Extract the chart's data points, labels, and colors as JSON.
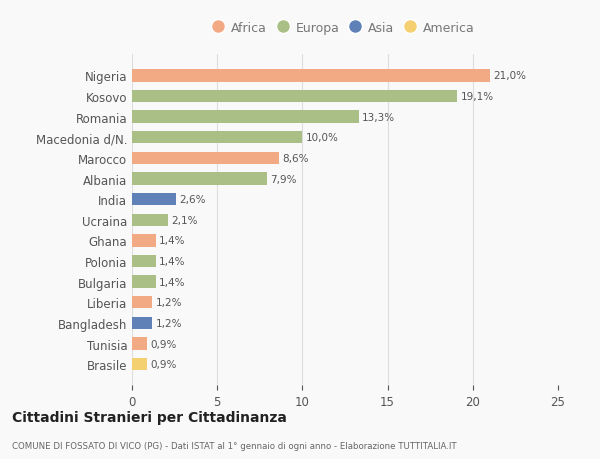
{
  "countries": [
    "Nigeria",
    "Kosovo",
    "Romania",
    "Macedonia d/N.",
    "Marocco",
    "Albania",
    "India",
    "Ucraina",
    "Ghana",
    "Polonia",
    "Bulgaria",
    "Liberia",
    "Bangladesh",
    "Tunisia",
    "Brasile"
  ],
  "values": [
    21.0,
    19.1,
    13.3,
    10.0,
    8.6,
    7.9,
    2.6,
    2.1,
    1.4,
    1.4,
    1.4,
    1.2,
    1.2,
    0.9,
    0.9
  ],
  "labels": [
    "21,0%",
    "19,1%",
    "13,3%",
    "10,0%",
    "8,6%",
    "7,9%",
    "2,6%",
    "2,1%",
    "1,4%",
    "1,4%",
    "1,4%",
    "1,2%",
    "1,2%",
    "0,9%",
    "0,9%"
  ],
  "continents": [
    "Africa",
    "Europa",
    "Europa",
    "Europa",
    "Africa",
    "Europa",
    "Asia",
    "Europa",
    "Africa",
    "Europa",
    "Europa",
    "Africa",
    "Asia",
    "Africa",
    "America"
  ],
  "colors": {
    "Africa": "#F2AA84",
    "Europa": "#AABF85",
    "Asia": "#6080B8",
    "America": "#F5D070"
  },
  "xlim": [
    0,
    25
  ],
  "xticks": [
    0,
    5,
    10,
    15,
    20,
    25
  ],
  "title": "Cittadini Stranieri per Cittadinanza",
  "subtitle": "COMUNE DI FOSSATO DI VICO (PG) - Dati ISTAT al 1° gennaio di ogni anno - Elaborazione TUTTITALIA.IT",
  "background_color": "#f9f9f9",
  "grid_color": "#dddddd",
  "legend_items": [
    "Africa",
    "Europa",
    "Asia",
    "America"
  ]
}
